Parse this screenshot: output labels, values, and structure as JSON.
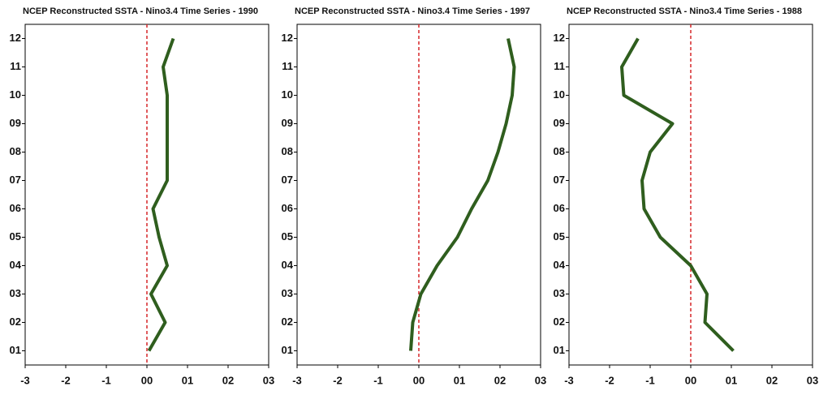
{
  "chart_data": [
    {
      "type": "line",
      "title": "NCEP Reconstructed SSTA - Nino3.4 Time Series - 1990",
      "categories": [
        "01",
        "02",
        "03",
        "04",
        "05",
        "06",
        "07",
        "08",
        "09",
        "10",
        "11",
        "12"
      ],
      "values": [
        0.05,
        0.45,
        0.1,
        0.5,
        0.3,
        0.15,
        0.5,
        0.5,
        0.5,
        0.5,
        0.4,
        0.65
      ],
      "color": "#2f5e1e",
      "zero_line_color": "#d62728",
      "xlim": [
        -3,
        3
      ],
      "xticks": [
        -3,
        -2,
        -1,
        {
          "value": 0,
          "label": "00"
        },
        {
          "value": 1,
          "label": "01"
        },
        {
          "value": 2,
          "label": "02"
        },
        {
          "value": 3,
          "label": "03"
        }
      ]
    },
    {
      "type": "line",
      "title": "NCEP Reconstructed SSTA - Nino3.4 Time Series - 1997",
      "categories": [
        "01",
        "02",
        "03",
        "04",
        "05",
        "06",
        "07",
        "08",
        "09",
        "10",
        "11",
        "12"
      ],
      "values": [
        -0.2,
        -0.15,
        0.05,
        0.45,
        0.95,
        1.3,
        1.7,
        1.95,
        2.15,
        2.3,
        2.35,
        2.2
      ],
      "color": "#2f5e1e",
      "zero_line_color": "#d62728",
      "xlim": [
        -3,
        3
      ],
      "xticks": [
        -3,
        -2,
        -1,
        {
          "value": 0,
          "label": "00"
        },
        {
          "value": 1,
          "label": "01"
        },
        {
          "value": 2,
          "label": "02"
        },
        {
          "value": 3,
          "label": "03"
        }
      ]
    },
    {
      "type": "line",
      "title": "NCEP Reconstructed SSTA - Nino3.4 Time Series - 1988",
      "categories": [
        "01",
        "02",
        "03",
        "04",
        "05",
        "06",
        "07",
        "08",
        "09",
        "10",
        "11",
        "12"
      ],
      "values": [
        1.05,
        0.35,
        0.4,
        0.0,
        -0.75,
        -1.15,
        -1.2,
        -1.0,
        -0.45,
        -1.65,
        -1.7,
        -1.3
      ],
      "color": "#2f5e1e",
      "zero_line_color": "#d62728",
      "xlim": [
        -3,
        3
      ],
      "xticks": [
        -3,
        -2,
        -1,
        {
          "value": 0,
          "label": "00"
        },
        {
          "value": 1,
          "label": "01"
        },
        {
          "value": 2,
          "label": "02"
        },
        {
          "value": 3,
          "label": "03"
        }
      ]
    }
  ]
}
